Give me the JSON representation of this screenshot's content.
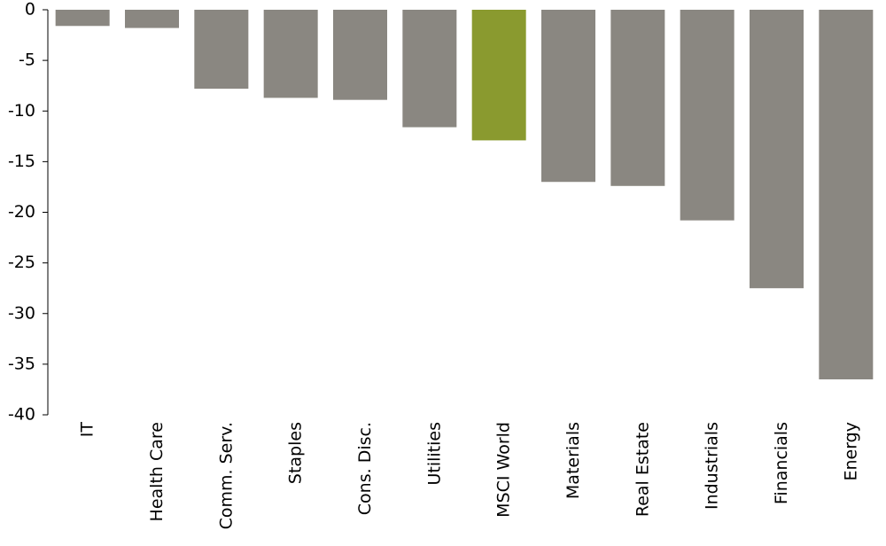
{
  "chart_data": {
    "type": "bar",
    "categories": [
      "IT",
      "Health Care",
      "Comm. Serv.",
      "Staples",
      "Cons. Disc.",
      "Utilities",
      "MSCI World",
      "Materials",
      "Real Estate",
      "Industrials",
      "Financials",
      "Energy"
    ],
    "values": [
      -1.6,
      -1.8,
      -7.8,
      -8.7,
      -8.9,
      -11.6,
      -12.9,
      -17.0,
      -17.4,
      -20.8,
      -27.5,
      -36.5
    ],
    "highlight": "MSCI World",
    "colors": {
      "bar": "#8a8781",
      "highlight": "#8a9a2f",
      "axis": "#000000"
    },
    "ylim": [
      -40,
      0
    ],
    "yticks": [
      0,
      -5,
      -10,
      -15,
      -20,
      -25,
      -30,
      -35,
      -40
    ],
    "title": "",
    "xlabel": "",
    "ylabel": "",
    "grid": false,
    "legend": "none"
  }
}
